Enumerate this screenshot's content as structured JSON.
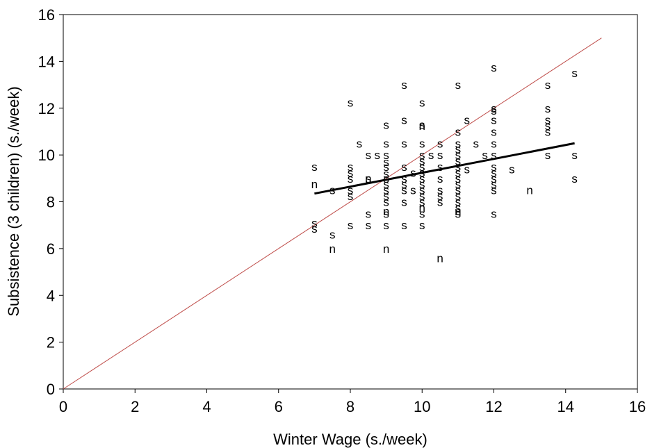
{
  "chart_data": {
    "type": "scatter",
    "title": "",
    "xlabel": "Winter Wage (s./week)",
    "ylabel": "Subsistence (3 children) (s./week)",
    "xlim": [
      0,
      16
    ],
    "ylim": [
      0,
      16
    ],
    "xticks": [
      "0",
      "2",
      "4",
      "6",
      "8",
      "10",
      "12",
      "14",
      "16"
    ],
    "yticks": [
      "0",
      "2",
      "4",
      "6",
      "8",
      "10",
      "12",
      "14",
      "16"
    ],
    "grid": false,
    "legend": "none",
    "colors": {
      "points": "#000000",
      "regression_line": "#000000",
      "reference_line": "#c0504d"
    },
    "series": [
      {
        "marker": "s",
        "points": [
          [
            7,
            9.5
          ],
          [
            7,
            7.1
          ],
          [
            7,
            6.85
          ],
          [
            7.5,
            8.5
          ],
          [
            7.5,
            6.6
          ],
          [
            8,
            12.25
          ],
          [
            8,
            9.5
          ],
          [
            8,
            9.25
          ],
          [
            8,
            9
          ],
          [
            8,
            8.5
          ],
          [
            8,
            8.25
          ],
          [
            8,
            7
          ],
          [
            8.25,
            10.5
          ],
          [
            8.5,
            10
          ],
          [
            8.5,
            9
          ],
          [
            8.5,
            7.5
          ],
          [
            8.5,
            7
          ],
          [
            8.75,
            10
          ],
          [
            9,
            11.3
          ],
          [
            9,
            10.5
          ],
          [
            9,
            10
          ],
          [
            9,
            9.7
          ],
          [
            9,
            9.5
          ],
          [
            9,
            9.2
          ],
          [
            9,
            9
          ],
          [
            9,
            8.75
          ],
          [
            9,
            8.5
          ],
          [
            9,
            8.25
          ],
          [
            9,
            8
          ],
          [
            9,
            7.5
          ],
          [
            9,
            7
          ],
          [
            9.5,
            13
          ],
          [
            9.5,
            11.5
          ],
          [
            9.5,
            10.5
          ],
          [
            9.5,
            9.5
          ],
          [
            9.5,
            9
          ],
          [
            9.5,
            8.75
          ],
          [
            9.5,
            8.5
          ],
          [
            9.5,
            8
          ],
          [
            9.5,
            7
          ],
          [
            9.75,
            9.25
          ],
          [
            9.75,
            8.5
          ],
          [
            10,
            12.25
          ],
          [
            10,
            11.3
          ],
          [
            10,
            10.5
          ],
          [
            10,
            10
          ],
          [
            10,
            9.75
          ],
          [
            10,
            9.5
          ],
          [
            10,
            9.25
          ],
          [
            10,
            9
          ],
          [
            10,
            8.75
          ],
          [
            10,
            8.5
          ],
          [
            10,
            8.25
          ],
          [
            10,
            8
          ],
          [
            10,
            7.5
          ],
          [
            10,
            7
          ],
          [
            10.25,
            10
          ],
          [
            10.5,
            10.5
          ],
          [
            10.5,
            10
          ],
          [
            10.5,
            9.5
          ],
          [
            10.5,
            9
          ],
          [
            10.5,
            8.5
          ],
          [
            10.5,
            8.25
          ],
          [
            10.5,
            8
          ],
          [
            11,
            13
          ],
          [
            11,
            11
          ],
          [
            11,
            10.5
          ],
          [
            11,
            10.25
          ],
          [
            11,
            10
          ],
          [
            11,
            9.75
          ],
          [
            11,
            9.5
          ],
          [
            11,
            9.25
          ],
          [
            11,
            9
          ],
          [
            11,
            8.75
          ],
          [
            11,
            8.5
          ],
          [
            11,
            8.25
          ],
          [
            11,
            8
          ],
          [
            11,
            7.75
          ],
          [
            11,
            7.5
          ],
          [
            11.25,
            11.5
          ],
          [
            11.25,
            9.4
          ],
          [
            11.5,
            10.5
          ],
          [
            11.75,
            10
          ],
          [
            12,
            13.75
          ],
          [
            12,
            12
          ],
          [
            12,
            11.9
          ],
          [
            12,
            11.5
          ],
          [
            12,
            11
          ],
          [
            12,
            10.5
          ],
          [
            12,
            10
          ],
          [
            12,
            9.5
          ],
          [
            12,
            9.25
          ],
          [
            12,
            9
          ],
          [
            12,
            8.75
          ],
          [
            12,
            8.5
          ],
          [
            12,
            7.5
          ],
          [
            12.5,
            9.4
          ],
          [
            13.5,
            13
          ],
          [
            13.5,
            12
          ],
          [
            13.5,
            11.5
          ],
          [
            13.5,
            11.25
          ],
          [
            13.5,
            11
          ],
          [
            13.5,
            10
          ],
          [
            14.25,
            13.5
          ],
          [
            14.25,
            10
          ],
          [
            14.25,
            9
          ]
        ]
      },
      {
        "marker": "n",
        "points": [
          [
            7,
            8.75
          ],
          [
            7.5,
            6
          ],
          [
            8.5,
            9
          ],
          [
            9,
            6
          ],
          [
            9,
            7.6
          ],
          [
            10,
            11.25
          ],
          [
            10,
            7.75
          ],
          [
            10.5,
            5.6
          ],
          [
            11,
            7.6
          ],
          [
            13,
            8.5
          ]
        ]
      }
    ],
    "lines": [
      {
        "kind": "regression",
        "points": [
          [
            7,
            8.35
          ],
          [
            14.25,
            10.5
          ]
        ]
      },
      {
        "kind": "reference",
        "points": [
          [
            0,
            0
          ],
          [
            15,
            15
          ]
        ]
      }
    ]
  }
}
